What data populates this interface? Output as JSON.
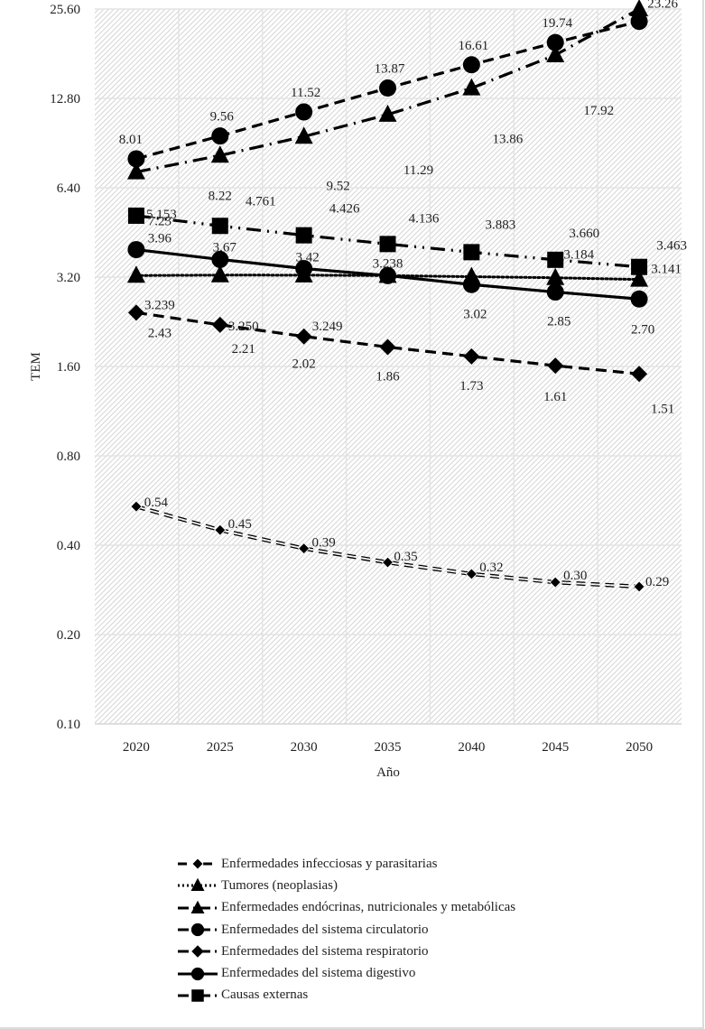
{
  "chart_data": {
    "type": "line",
    "title": "",
    "xlabel": "Año",
    "ylabel": "TEM",
    "yscale": "log2",
    "ylim": [
      0.1,
      25.6
    ],
    "yticks": [
      "0.10",
      "0.20",
      "0.40",
      "0.80",
      "1.60",
      "3.20",
      "6.40",
      "12.80",
      "25.60"
    ],
    "ytick_values": [
      0.1,
      0.2,
      0.4,
      0.8,
      1.6,
      3.2,
      6.4,
      12.8,
      25.6
    ],
    "categories": [
      "2020",
      "2025",
      "2030",
      "2035",
      "2040",
      "2045",
      "2050"
    ],
    "grid": true,
    "legend_position": "bottom",
    "series": [
      {
        "name": "Enfermedades infecciosas y parasitarias",
        "marker": "small-diamond",
        "line": "double-dash",
        "values": [
          0.54,
          0.45,
          0.39,
          0.35,
          0.32,
          0.3,
          0.29
        ],
        "labels": [
          "0.54",
          "0.45",
          "0.39",
          "0.35",
          "0.32",
          "0.30",
          "0.29"
        ]
      },
      {
        "name": "Tumores (neoplasias)",
        "marker": "triangle",
        "line": "dotted",
        "values": [
          3.239,
          3.25,
          3.249,
          3.238,
          3.21,
          3.184,
          3.141
        ],
        "labels": [
          "3.239",
          "3.250",
          "3.249",
          "",
          "",
          "3.184",
          "3.141"
        ]
      },
      {
        "name": "Enfermedades endócrinas, nutricionales y metabólicas",
        "marker": "triangle",
        "line": "dash-dot",
        "values": [
          7.23,
          8.22,
          9.52,
          11.29,
          13.86,
          17.92,
          25.6
        ],
        "labels": [
          "7.23",
          "8.22",
          "9.52",
          "11.29",
          "13.86",
          "17.92",
          ""
        ]
      },
      {
        "name": "Enfermedades del sistema circulatorio",
        "marker": "circle",
        "line": "dash",
        "values": [
          8.01,
          9.56,
          11.52,
          13.87,
          16.61,
          19.74,
          23.26
        ],
        "labels": [
          "8.01",
          "9.56",
          "11.52",
          "13.87",
          "16.61",
          "19.74",
          "23.26"
        ]
      },
      {
        "name": "Enfermedades del sistema respiratorio",
        "marker": "diamond",
        "line": "dash",
        "values": [
          2.43,
          2.21,
          2.02,
          1.86,
          1.73,
          1.61,
          1.51
        ],
        "labels": [
          "2.43",
          "2.21",
          "2.02",
          "1.86",
          "1.73",
          "1.61",
          "1.51"
        ]
      },
      {
        "name": "Enfermedades del sistema digestivo",
        "marker": "circle",
        "line": "solid",
        "values": [
          3.96,
          3.67,
          3.42,
          3.238,
          3.02,
          2.85,
          2.7
        ],
        "labels": [
          "3.96",
          "3.67",
          "3.42",
          "3.238",
          "3.02",
          "2.85",
          "2.70"
        ]
      },
      {
        "name": "Causas externas",
        "marker": "square",
        "line": "long-dash-dot-dot",
        "values": [
          5.153,
          4.761,
          4.426,
          4.136,
          3.883,
          3.66,
          3.463
        ],
        "labels": [
          "5.153",
          "4.761",
          "4.426",
          "4.136",
          "3.883",
          "3.660",
          "3.463"
        ]
      }
    ]
  }
}
